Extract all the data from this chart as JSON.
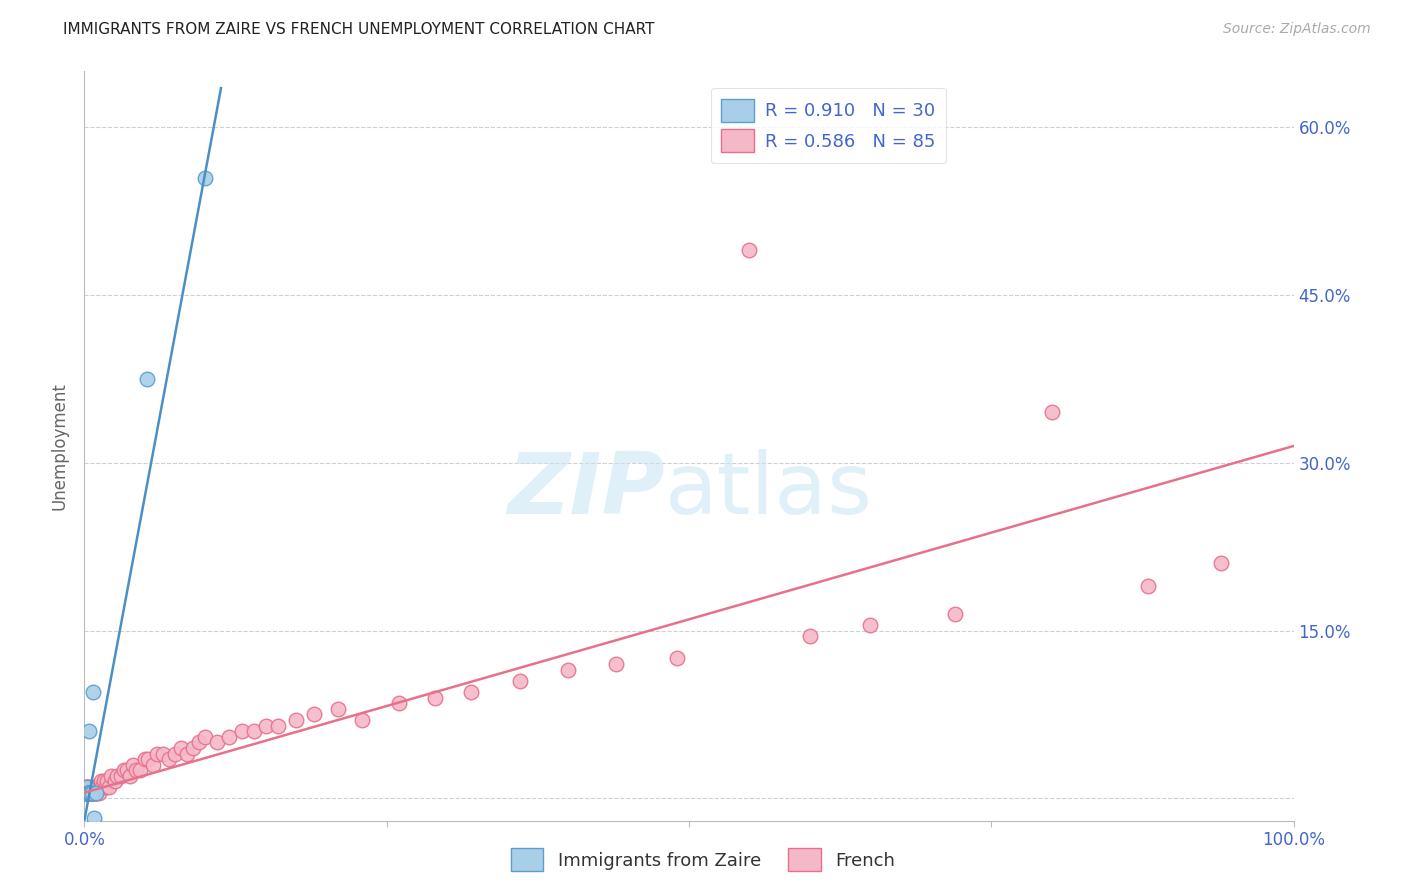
{
  "title": "IMMIGRANTS FROM ZAIRE VS FRENCH UNEMPLOYMENT CORRELATION CHART",
  "source": "Source: ZipAtlas.com",
  "ylabel": "Unemployment",
  "ytick_labels": [
    "",
    "15.0%",
    "30.0%",
    "45.0%",
    "60.0%"
  ],
  "ytick_values": [
    0.0,
    0.15,
    0.3,
    0.45,
    0.6
  ],
  "xlim": [
    0.0,
    1.0
  ],
  "ylim": [
    -0.02,
    0.65
  ],
  "legend_r1": "R = 0.910",
  "legend_n1": "N = 30",
  "legend_r2": "R = 0.586",
  "legend_n2": "N = 85",
  "blue_fill": "#a8cfe8",
  "blue_edge": "#5b9ec9",
  "pink_fill": "#f5b8c8",
  "pink_edge": "#e8708a",
  "blue_line_color": "#4a90c4",
  "pink_line_color": "#e8708a",
  "blue_line_x": [
    0.0,
    0.113
  ],
  "blue_line_y": [
    -0.02,
    0.635
  ],
  "pink_line_x": [
    0.0,
    1.0
  ],
  "pink_line_y": [
    0.005,
    0.315
  ],
  "background_color": "#ffffff",
  "grid_color": "#d0d0d0",
  "tick_color": "#4466cc",
  "blue_x": [
    0.001,
    0.001,
    0.001,
    0.001,
    0.002,
    0.002,
    0.002,
    0.002,
    0.002,
    0.002,
    0.003,
    0.003,
    0.003,
    0.003,
    0.003,
    0.003,
    0.004,
    0.004,
    0.004,
    0.004,
    0.004,
    0.005,
    0.005,
    0.005,
    0.006,
    0.007,
    0.008,
    0.01,
    0.052,
    0.1
  ],
  "blue_y": [
    0.005,
    0.005,
    0.005,
    0.005,
    0.005,
    0.005,
    0.005,
    0.005,
    0.005,
    0.01,
    0.005,
    0.005,
    0.005,
    0.005,
    0.005,
    0.005,
    0.005,
    0.005,
    0.005,
    0.005,
    0.06,
    0.005,
    0.005,
    0.005,
    0.005,
    0.095,
    -0.018,
    0.005,
    0.375,
    0.555
  ],
  "pink_x": [
    0.001,
    0.001,
    0.002,
    0.002,
    0.002,
    0.002,
    0.003,
    0.003,
    0.003,
    0.003,
    0.004,
    0.004,
    0.004,
    0.005,
    0.005,
    0.005,
    0.005,
    0.005,
    0.006,
    0.006,
    0.007,
    0.007,
    0.007,
    0.008,
    0.008,
    0.009,
    0.009,
    0.01,
    0.01,
    0.01,
    0.011,
    0.012,
    0.013,
    0.014,
    0.015,
    0.016,
    0.018,
    0.019,
    0.02,
    0.022,
    0.025,
    0.027,
    0.03,
    0.033,
    0.035,
    0.038,
    0.04,
    0.043,
    0.046,
    0.05,
    0.053,
    0.057,
    0.06,
    0.065,
    0.07,
    0.075,
    0.08,
    0.085,
    0.09,
    0.095,
    0.1,
    0.11,
    0.12,
    0.13,
    0.14,
    0.15,
    0.16,
    0.175,
    0.19,
    0.21,
    0.23,
    0.26,
    0.29,
    0.32,
    0.36,
    0.4,
    0.44,
    0.49,
    0.55,
    0.6,
    0.65,
    0.72,
    0.8,
    0.88,
    0.94
  ],
  "pink_y": [
    0.005,
    0.01,
    0.005,
    0.01,
    0.005,
    0.005,
    0.005,
    0.005,
    0.005,
    0.01,
    0.005,
    0.005,
    0.005,
    0.005,
    0.005,
    0.005,
    0.005,
    0.01,
    0.005,
    0.005,
    0.005,
    0.01,
    0.005,
    0.005,
    0.005,
    0.005,
    0.01,
    0.005,
    0.01,
    0.005,
    0.01,
    0.005,
    0.01,
    0.015,
    0.01,
    0.015,
    0.01,
    0.015,
    0.01,
    0.02,
    0.015,
    0.02,
    0.02,
    0.025,
    0.025,
    0.02,
    0.03,
    0.025,
    0.025,
    0.035,
    0.035,
    0.03,
    0.04,
    0.04,
    0.035,
    0.04,
    0.045,
    0.04,
    0.045,
    0.05,
    0.055,
    0.05,
    0.055,
    0.06,
    0.06,
    0.065,
    0.065,
    0.07,
    0.075,
    0.08,
    0.07,
    0.085,
    0.09,
    0.095,
    0.105,
    0.115,
    0.12,
    0.125,
    0.49,
    0.145,
    0.155,
    0.165,
    0.345,
    0.19,
    0.21
  ],
  "title_fontsize": 11,
  "axis_fontsize": 12,
  "legend_fontsize": 13
}
